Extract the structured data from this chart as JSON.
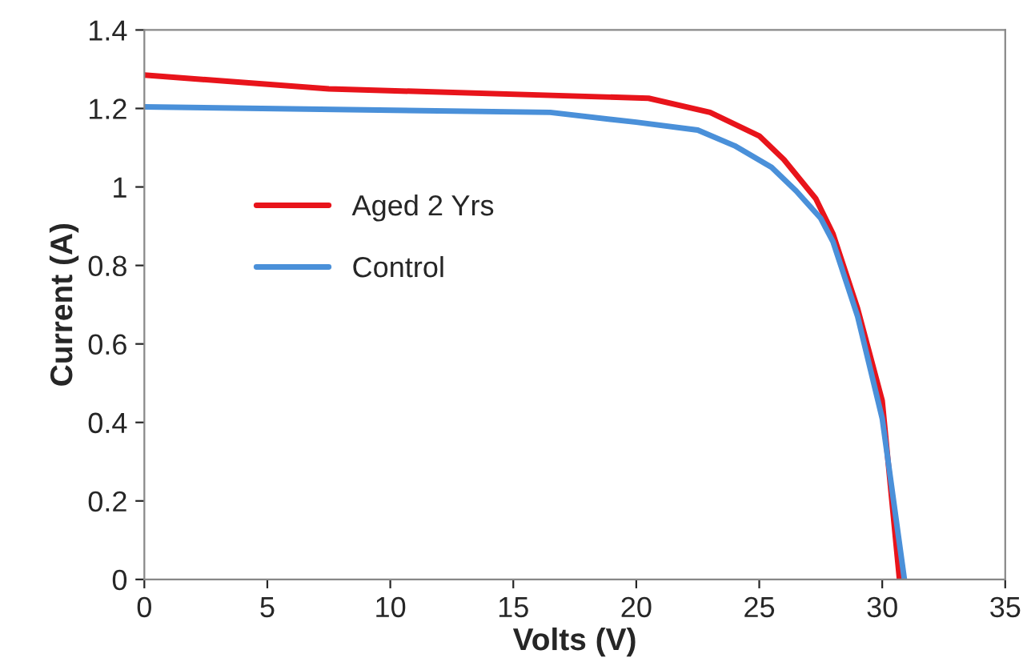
{
  "chart_data": {
    "type": "line",
    "xlabel": "Volts (V)",
    "ylabel": "Current (A)",
    "xlim": [
      0,
      35
    ],
    "xticks": [
      0,
      5,
      10,
      15,
      20,
      25,
      30,
      35
    ],
    "ylim": [
      0,
      1.4
    ],
    "yticks": [
      0,
      0.2,
      0.4,
      0.6,
      0.8,
      1,
      1.2,
      1.4
    ],
    "grid": false,
    "legend": "left",
    "marker": "none",
    "line_style": "solid",
    "series": [
      {
        "name": "Aged 2 Yrs",
        "color": "#e8141b",
        "x": [
          0,
          7.5,
          20.5,
          23,
          25,
          26,
          27.3,
          28,
          29,
          30,
          30.7
        ],
        "values": [
          1.285,
          1.25,
          1.226,
          1.19,
          1.13,
          1.07,
          0.97,
          0.88,
          0.69,
          0.455,
          0
        ]
      },
      {
        "name": "Control",
        "color": "#4a90d9",
        "x": [
          0,
          16.5,
          20,
          22.5,
          24,
          25.5,
          26.5,
          27.5,
          28,
          29,
          30,
          30.9
        ],
        "values": [
          1.204,
          1.19,
          1.165,
          1.145,
          1.105,
          1.05,
          0.99,
          0.92,
          0.86,
          0.67,
          0.41,
          0
        ]
      }
    ]
  }
}
